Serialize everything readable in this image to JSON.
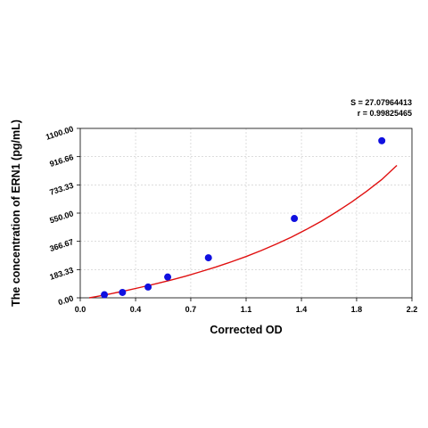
{
  "chart_data": {
    "type": "scatter",
    "xlabel": "Corrected OD",
    "ylabel": "The concentration of ERN1 (pg/mL)",
    "xlim": [
      0,
      2.2
    ],
    "ylim": [
      0,
      1100
    ],
    "x_ticks": [
      "0.0",
      "0.4",
      "0.7",
      "1.1",
      "1.4",
      "1.8",
      "2.2"
    ],
    "x_tick_values": [
      0.0,
      0.367,
      0.733,
      1.1,
      1.467,
      1.833,
      2.2
    ],
    "y_ticks": [
      "0.00",
      "183.33",
      "366.67",
      "550.00",
      "733.33",
      "916.66",
      "1100.00"
    ],
    "y_tick_values": [
      0,
      183.33,
      366.67,
      550,
      733.33,
      916.66,
      1100
    ],
    "grid": true,
    "stats": [
      "S = 27.07964413",
      "r = 0.99825465"
    ],
    "points": {
      "x": [
        0.16,
        0.28,
        0.45,
        0.58,
        0.85,
        1.42,
        2.0
      ],
      "y": [
        20,
        35,
        70,
        135,
        260,
        515,
        1020
      ]
    },
    "fit_curve": {
      "x": [
        0.06,
        0.1,
        0.2,
        0.3,
        0.4,
        0.5,
        0.6,
        0.7,
        0.8,
        0.9,
        1.0,
        1.1,
        1.2,
        1.3,
        1.4,
        1.5,
        1.6,
        1.7,
        1.8,
        1.9,
        2.0,
        2.1
      ],
      "y": [
        0,
        7,
        26,
        46,
        68,
        91,
        115,
        141,
        170,
        200,
        233,
        268,
        307,
        349,
        394,
        444,
        498,
        558,
        622,
        692,
        768,
        860
      ]
    },
    "colors": {
      "points": "#1010e0",
      "curve": "#e01010",
      "grid": "#c8c8c8"
    }
  }
}
